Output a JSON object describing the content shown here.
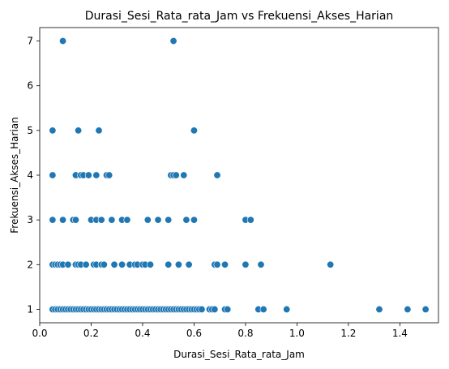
{
  "chart_data": {
    "type": "scatter",
    "title": "Durasi_Sesi_Rata_rata_Jam vs Frekuensi_Akses_Harian",
    "xlabel": "Durasi_Sesi_Rata_rata_Jam",
    "ylabel": "Frekuensi_Akses_Harian",
    "xlim": [
      0.0,
      1.55
    ],
    "ylim": [
      0.7,
      7.3
    ],
    "xticks": [
      0.0,
      0.2,
      0.4,
      0.6,
      0.8,
      1.0,
      1.2,
      1.4
    ],
    "xtick_labels": [
      "0.0",
      "0.2",
      "0.4",
      "0.6",
      "0.8",
      "1.0",
      "1.2",
      "1.4"
    ],
    "yticks": [
      1,
      2,
      3,
      4,
      5,
      6,
      7
    ],
    "ytick_labels": [
      "1",
      "2",
      "3",
      "4",
      "5",
      "6",
      "7"
    ],
    "grid": false,
    "marker_color": "#1f77b4",
    "marker_edge_color": "#ffffff",
    "points": [
      {
        "x": 0.09,
        "y": 7
      },
      {
        "x": 0.52,
        "y": 7
      },
      {
        "x": 0.05,
        "y": 5
      },
      {
        "x": 0.15,
        "y": 5
      },
      {
        "x": 0.23,
        "y": 5
      },
      {
        "x": 0.6,
        "y": 5
      },
      {
        "x": 0.05,
        "y": 4
      },
      {
        "x": 0.14,
        "y": 4
      },
      {
        "x": 0.16,
        "y": 4
      },
      {
        "x": 0.17,
        "y": 4
      },
      {
        "x": 0.19,
        "y": 4
      },
      {
        "x": 0.22,
        "y": 4
      },
      {
        "x": 0.26,
        "y": 4
      },
      {
        "x": 0.27,
        "y": 4
      },
      {
        "x": 0.51,
        "y": 4
      },
      {
        "x": 0.52,
        "y": 4
      },
      {
        "x": 0.53,
        "y": 4
      },
      {
        "x": 0.56,
        "y": 4
      },
      {
        "x": 0.69,
        "y": 4
      },
      {
        "x": 0.05,
        "y": 3
      },
      {
        "x": 0.09,
        "y": 3
      },
      {
        "x": 0.13,
        "y": 3
      },
      {
        "x": 0.14,
        "y": 3
      },
      {
        "x": 0.2,
        "y": 3
      },
      {
        "x": 0.22,
        "y": 3
      },
      {
        "x": 0.24,
        "y": 3
      },
      {
        "x": 0.28,
        "y": 3
      },
      {
        "x": 0.32,
        "y": 3
      },
      {
        "x": 0.34,
        "y": 3
      },
      {
        "x": 0.42,
        "y": 3
      },
      {
        "x": 0.46,
        "y": 3
      },
      {
        "x": 0.5,
        "y": 3
      },
      {
        "x": 0.57,
        "y": 3
      },
      {
        "x": 0.6,
        "y": 3
      },
      {
        "x": 0.8,
        "y": 3
      },
      {
        "x": 0.82,
        "y": 3
      },
      {
        "x": 0.05,
        "y": 2
      },
      {
        "x": 0.06,
        "y": 2
      },
      {
        "x": 0.07,
        "y": 2
      },
      {
        "x": 0.08,
        "y": 2
      },
      {
        "x": 0.09,
        "y": 2
      },
      {
        "x": 0.11,
        "y": 2
      },
      {
        "x": 0.14,
        "y": 2
      },
      {
        "x": 0.15,
        "y": 2
      },
      {
        "x": 0.16,
        "y": 2
      },
      {
        "x": 0.18,
        "y": 2
      },
      {
        "x": 0.21,
        "y": 2
      },
      {
        "x": 0.22,
        "y": 2
      },
      {
        "x": 0.24,
        "y": 2
      },
      {
        "x": 0.25,
        "y": 2
      },
      {
        "x": 0.29,
        "y": 2
      },
      {
        "x": 0.32,
        "y": 2
      },
      {
        "x": 0.35,
        "y": 2
      },
      {
        "x": 0.37,
        "y": 2
      },
      {
        "x": 0.38,
        "y": 2
      },
      {
        "x": 0.4,
        "y": 2
      },
      {
        "x": 0.41,
        "y": 2
      },
      {
        "x": 0.43,
        "y": 2
      },
      {
        "x": 0.5,
        "y": 2
      },
      {
        "x": 0.54,
        "y": 2
      },
      {
        "x": 0.58,
        "y": 2
      },
      {
        "x": 0.68,
        "y": 2
      },
      {
        "x": 0.69,
        "y": 2
      },
      {
        "x": 0.72,
        "y": 2
      },
      {
        "x": 0.8,
        "y": 2
      },
      {
        "x": 0.86,
        "y": 2
      },
      {
        "x": 1.13,
        "y": 2
      },
      {
        "x": 0.05,
        "y": 1
      },
      {
        "x": 0.06,
        "y": 1
      },
      {
        "x": 0.07,
        "y": 1
      },
      {
        "x": 0.08,
        "y": 1
      },
      {
        "x": 0.09,
        "y": 1
      },
      {
        "x": 0.1,
        "y": 1
      },
      {
        "x": 0.11,
        "y": 1
      },
      {
        "x": 0.12,
        "y": 1
      },
      {
        "x": 0.13,
        "y": 1
      },
      {
        "x": 0.14,
        "y": 1
      },
      {
        "x": 0.15,
        "y": 1
      },
      {
        "x": 0.16,
        "y": 1
      },
      {
        "x": 0.17,
        "y": 1
      },
      {
        "x": 0.18,
        "y": 1
      },
      {
        "x": 0.19,
        "y": 1
      },
      {
        "x": 0.2,
        "y": 1
      },
      {
        "x": 0.21,
        "y": 1
      },
      {
        "x": 0.22,
        "y": 1
      },
      {
        "x": 0.23,
        "y": 1
      },
      {
        "x": 0.24,
        "y": 1
      },
      {
        "x": 0.25,
        "y": 1
      },
      {
        "x": 0.26,
        "y": 1
      },
      {
        "x": 0.27,
        "y": 1
      },
      {
        "x": 0.28,
        "y": 1
      },
      {
        "x": 0.29,
        "y": 1
      },
      {
        "x": 0.3,
        "y": 1
      },
      {
        "x": 0.31,
        "y": 1
      },
      {
        "x": 0.32,
        "y": 1
      },
      {
        "x": 0.33,
        "y": 1
      },
      {
        "x": 0.34,
        "y": 1
      },
      {
        "x": 0.35,
        "y": 1
      },
      {
        "x": 0.36,
        "y": 1
      },
      {
        "x": 0.37,
        "y": 1
      },
      {
        "x": 0.38,
        "y": 1
      },
      {
        "x": 0.39,
        "y": 1
      },
      {
        "x": 0.4,
        "y": 1
      },
      {
        "x": 0.41,
        "y": 1
      },
      {
        "x": 0.42,
        "y": 1
      },
      {
        "x": 0.43,
        "y": 1
      },
      {
        "x": 0.44,
        "y": 1
      },
      {
        "x": 0.45,
        "y": 1
      },
      {
        "x": 0.46,
        "y": 1
      },
      {
        "x": 0.47,
        "y": 1
      },
      {
        "x": 0.48,
        "y": 1
      },
      {
        "x": 0.49,
        "y": 1
      },
      {
        "x": 0.5,
        "y": 1
      },
      {
        "x": 0.51,
        "y": 1
      },
      {
        "x": 0.52,
        "y": 1
      },
      {
        "x": 0.53,
        "y": 1
      },
      {
        "x": 0.54,
        "y": 1
      },
      {
        "x": 0.55,
        "y": 1
      },
      {
        "x": 0.56,
        "y": 1
      },
      {
        "x": 0.57,
        "y": 1
      },
      {
        "x": 0.58,
        "y": 1
      },
      {
        "x": 0.59,
        "y": 1
      },
      {
        "x": 0.6,
        "y": 1
      },
      {
        "x": 0.61,
        "y": 1
      },
      {
        "x": 0.62,
        "y": 1
      },
      {
        "x": 0.63,
        "y": 1
      },
      {
        "x": 0.66,
        "y": 1
      },
      {
        "x": 0.67,
        "y": 1
      },
      {
        "x": 0.68,
        "y": 1
      },
      {
        "x": 0.72,
        "y": 1
      },
      {
        "x": 0.73,
        "y": 1
      },
      {
        "x": 0.85,
        "y": 1
      },
      {
        "x": 0.87,
        "y": 1
      },
      {
        "x": 0.96,
        "y": 1
      },
      {
        "x": 1.32,
        "y": 1
      },
      {
        "x": 1.43,
        "y": 1
      },
      {
        "x": 1.5,
        "y": 1
      }
    ]
  }
}
